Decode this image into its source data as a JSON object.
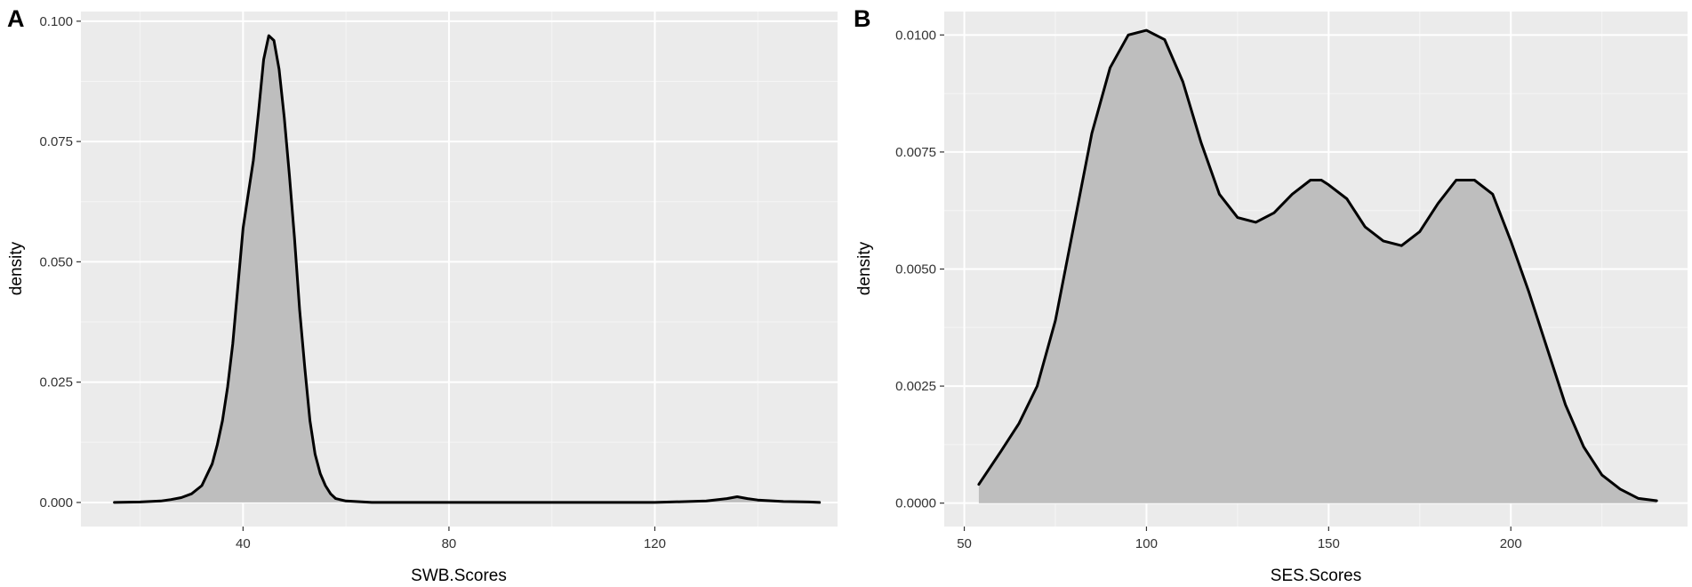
{
  "colors": {
    "panel_bg": "#EBEBEB",
    "grid_major": "#FFFFFF",
    "grid_minor": "#F5F5F5",
    "area_fill": "#BEBEBE",
    "line": "#000000",
    "tick_text": "#333333"
  },
  "chart_data": [
    {
      "type": "area",
      "panel_label": "A",
      "title": "",
      "xlabel": "SWB.Scores",
      "ylabel": "density",
      "xlim": [
        8.5,
        155.5
      ],
      "ylim": [
        -0.005,
        0.102
      ],
      "x_ticks": [
        40,
        80,
        120
      ],
      "x_tick_labels": [
        "40",
        "80",
        "120"
      ],
      "y_ticks": [
        0,
        0.025,
        0.05,
        0.075,
        0.1
      ],
      "y_tick_labels": [
        "0.000",
        "0.025",
        "0.050",
        "0.075",
        "0.100"
      ],
      "grid": true,
      "x": [
        15,
        20,
        24,
        26,
        28,
        30,
        32,
        34,
        35,
        36,
        37,
        38,
        39,
        40,
        41,
        42,
        43,
        44,
        45,
        46,
        47,
        48,
        49,
        50,
        51,
        52,
        53,
        54,
        55,
        56,
        57,
        58,
        60,
        65,
        80,
        100,
        120,
        130,
        134,
        136,
        138,
        140,
        145,
        150,
        152
      ],
      "y": [
        0.0,
        0.0001,
        0.0003,
        0.0006,
        0.001,
        0.0018,
        0.0035,
        0.008,
        0.012,
        0.017,
        0.024,
        0.033,
        0.045,
        0.057,
        0.064,
        0.071,
        0.081,
        0.092,
        0.097,
        0.096,
        0.09,
        0.08,
        0.068,
        0.055,
        0.04,
        0.028,
        0.017,
        0.01,
        0.006,
        0.0035,
        0.0018,
        0.0008,
        0.0003,
        0.0,
        0.0,
        0.0,
        0.0,
        0.0003,
        0.0008,
        0.0012,
        0.0008,
        0.0005,
        0.0002,
        0.0001,
        0.0
      ]
    },
    {
      "type": "area",
      "panel_label": "B",
      "title": "",
      "xlabel": "SES.Scores",
      "ylabel": "density",
      "xlim": [
        44.5,
        248.5
      ],
      "ylim": [
        -0.0005,
        0.0105
      ],
      "x_ticks": [
        50,
        100,
        150,
        200
      ],
      "x_tick_labels": [
        "50",
        "100",
        "150",
        "200"
      ],
      "y_ticks": [
        0,
        0.0025,
        0.005,
        0.0075,
        0.01
      ],
      "y_tick_labels": [
        "0.0000",
        "0.0025",
        "0.0050",
        "0.0075",
        "0.0100"
      ],
      "grid": true,
      "x": [
        54,
        60,
        65,
        70,
        75,
        80,
        85,
        90,
        95,
        100,
        105,
        110,
        115,
        120,
        125,
        130,
        135,
        140,
        145,
        148,
        150,
        155,
        160,
        165,
        170,
        175,
        180,
        185,
        190,
        195,
        200,
        205,
        210,
        215,
        220,
        225,
        230,
        235,
        240
      ],
      "y": [
        0.0004,
        0.0011,
        0.0017,
        0.0025,
        0.0039,
        0.0059,
        0.0079,
        0.0093,
        0.01,
        0.0101,
        0.0099,
        0.009,
        0.0077,
        0.0066,
        0.0061,
        0.006,
        0.0062,
        0.0066,
        0.0069,
        0.0069,
        0.0068,
        0.0065,
        0.0059,
        0.0056,
        0.0055,
        0.0058,
        0.0064,
        0.0069,
        0.0069,
        0.0066,
        0.0056,
        0.0045,
        0.0033,
        0.0021,
        0.0012,
        0.0006,
        0.0003,
        0.0001,
        5e-05
      ]
    }
  ]
}
